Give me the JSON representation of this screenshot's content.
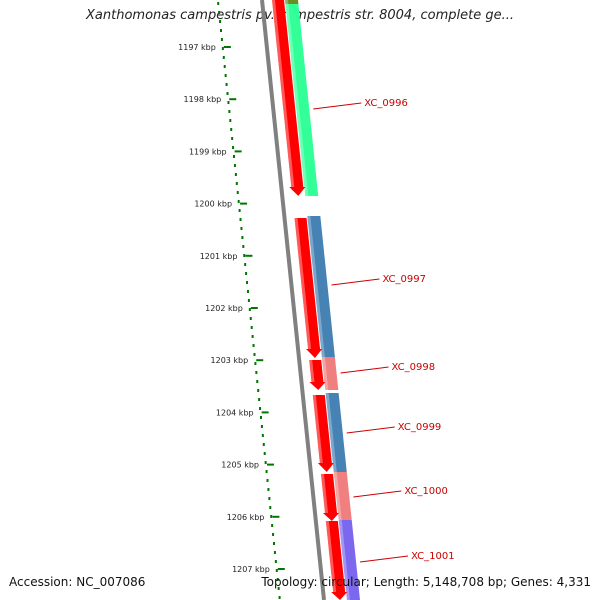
{
  "title": "Xanthomonas campestris pv. campestris str. 8004, complete ge...",
  "footer": {
    "accession": "Accession: NC_007086",
    "summary": "Topology: circular; Length: 5,148,708 bp; Genes: 4,331"
  },
  "ticks": [
    "1197 kbp",
    "1198 kbp",
    "1199 kbp",
    "1200 kbp",
    "1201 kbp",
    "1202 kbp",
    "1203 kbp",
    "1204 kbp",
    "1205 kbp",
    "1206 kbp",
    "1207 kbp"
  ],
  "gene_labels": [
    "XC_0996",
    "XC_0997",
    "XC_0998",
    "XC_0999",
    "XC_1000",
    "XC_1001"
  ],
  "colors": {
    "cds": "#ff0000",
    "gene_label": "#cc0000",
    "backbone": "#808080",
    "tick": "#007700",
    "feature_green": "#33ff99",
    "feature_olive": "#6b8e23",
    "feature_blue": "#4682b4",
    "feature_pink": "#f08080",
    "feature_purple": "#7b68ee"
  }
}
